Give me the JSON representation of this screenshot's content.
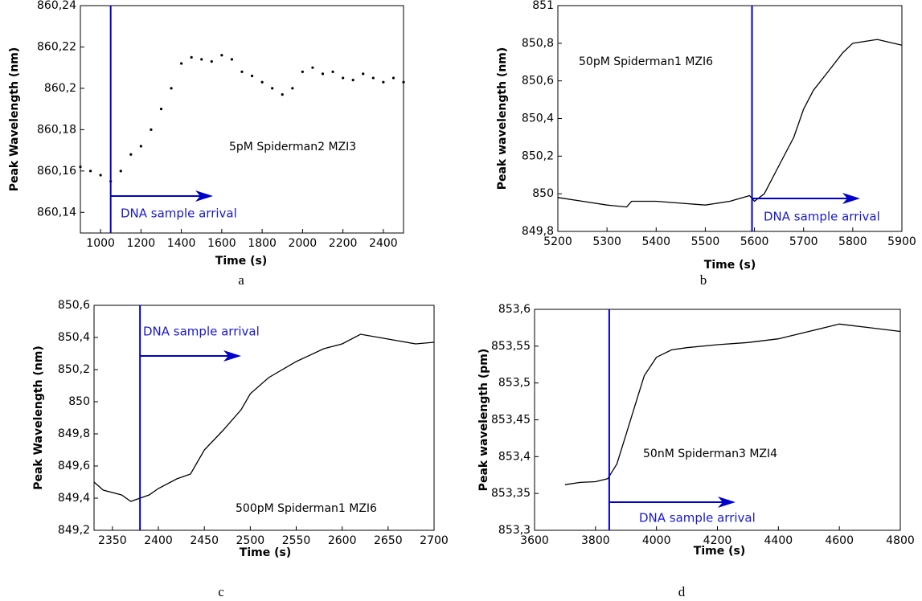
{
  "chart_data": [
    {
      "type": "scatter",
      "panel_label": "a",
      "x_label": "Time (s)",
      "y_label": "Peak Wavelength (nm)",
      "annotation": "5pM Spiderman2 MZI3",
      "arrow_label": "DNA sample arrival",
      "event_x": 1050,
      "event_color": "#0000cc",
      "color": "#000000",
      "x": [
        900,
        950,
        1000,
        1050,
        1100,
        1150,
        1200,
        1250,
        1300,
        1350,
        1400,
        1450,
        1500,
        1550,
        1600,
        1650,
        1700,
        1750,
        1800,
        1850,
        1900,
        1950,
        2000,
        2050,
        2100,
        2150,
        2200,
        2250,
        2300,
        2350,
        2400,
        2450,
        2500
      ],
      "values": [
        860.162,
        860.16,
        860.158,
        860.155,
        860.16,
        860.168,
        860.172,
        860.18,
        860.19,
        860.2,
        860.212,
        860.215,
        860.214,
        860.213,
        860.216,
        860.214,
        860.208,
        860.206,
        860.203,
        860.2,
        860.197,
        860.2,
        860.208,
        860.21,
        860.207,
        860.208,
        860.205,
        860.204,
        860.207,
        860.205,
        860.203,
        860.205,
        860.203
      ],
      "xlim": [
        900,
        2500
      ],
      "xticks": [
        1000,
        1200,
        1400,
        1600,
        1800,
        2000,
        2200,
        2400
      ],
      "ylim": [
        860.13,
        860.24
      ],
      "yticks": [
        {
          "value": 860.14,
          "label": "860,14"
        },
        {
          "value": 860.16,
          "label": "860,16"
        },
        {
          "value": 860.18,
          "label": "860,18"
        },
        {
          "value": 860.2,
          "label": "860,2"
        },
        {
          "value": 860.22,
          "label": "860,22"
        },
        {
          "value": 860.24,
          "label": "860,24"
        }
      ]
    },
    {
      "type": "line",
      "panel_label": "b",
      "x_label": "Time (s)",
      "y_label": "Peak wavelength (nm)",
      "annotation": "50pM Spiderman1 MZI6",
      "arrow_label": "DNA sample arrival",
      "event_x": 5595,
      "event_color": "#0000cc",
      "color": "#000000",
      "x": [
        5200,
        5250,
        5300,
        5340,
        5350,
        5400,
        5450,
        5500,
        5550,
        5590,
        5600,
        5620,
        5650,
        5680,
        5700,
        5720,
        5750,
        5780,
        5800,
        5850,
        5900
      ],
      "values": [
        849.98,
        849.96,
        849.94,
        849.93,
        849.96,
        849.96,
        849.95,
        849.94,
        849.96,
        849.99,
        849.96,
        850.0,
        850.15,
        850.3,
        850.45,
        850.55,
        850.65,
        850.75,
        850.8,
        850.82,
        850.79
      ],
      "xlim": [
        5200,
        5900
      ],
      "xticks": [
        5200,
        5300,
        5400,
        5500,
        5600,
        5700,
        5800,
        5900
      ],
      "ylim": [
        849.8,
        851
      ],
      "yticks": [
        {
          "value": 849.8,
          "label": "849,8"
        },
        850,
        {
          "value": 850.2,
          "label": "850,2"
        },
        {
          "value": 850.4,
          "label": "850,4"
        },
        {
          "value": 850.6,
          "label": "850,6"
        },
        {
          "value": 850.8,
          "label": "850,8"
        },
        851
      ]
    },
    {
      "type": "line",
      "panel_label": "c",
      "x_label": "Time (s)",
      "y_label": "Peak Wavelength (nm)",
      "annotation": "500pM Spiderman1 MZI6",
      "arrow_label": "DNA sample arrival",
      "event_x": 2380,
      "event_color": "#0000cc",
      "color": "#000000",
      "x": [
        2330,
        2340,
        2360,
        2370,
        2380,
        2390,
        2400,
        2420,
        2435,
        2450,
        2470,
        2490,
        2500,
        2520,
        2550,
        2580,
        2600,
        2620,
        2640,
        2660,
        2680,
        2700
      ],
      "values": [
        849.5,
        849.45,
        849.42,
        849.38,
        849.4,
        849.42,
        849.46,
        849.52,
        849.55,
        849.7,
        849.82,
        849.95,
        850.05,
        850.15,
        850.25,
        850.33,
        850.36,
        850.42,
        850.4,
        850.38,
        850.36,
        850.37
      ],
      "xlim": [
        2330,
        2700
      ],
      "xticks": [
        2350,
        2400,
        2450,
        2500,
        2550,
        2600,
        2650,
        2700
      ],
      "ylim": [
        849.2,
        850.6
      ],
      "yticks": [
        {
          "value": 849.2,
          "label": "849,2"
        },
        {
          "value": 849.4,
          "label": "849,4"
        },
        {
          "value": 849.6,
          "label": "849,6"
        },
        {
          "value": 849.8,
          "label": "849,8"
        },
        850,
        {
          "value": 850.2,
          "label": "850,2"
        },
        {
          "value": 850.4,
          "label": "850,4"
        },
        {
          "value": 850.6,
          "label": "850,6"
        }
      ]
    },
    {
      "type": "line",
      "panel_label": "d",
      "x_label": "Time (s)",
      "y_label": "Peak wavelength (pm)",
      "annotation": "50nM Spiderman3 MZI4",
      "arrow_label": "DNA sample arrival",
      "event_x": 3845,
      "event_color": "#0000cc",
      "color": "#000000",
      "x": [
        3700,
        3750,
        3800,
        3840,
        3870,
        3900,
        3930,
        3960,
        4000,
        4050,
        4100,
        4200,
        4300,
        4400,
        4500,
        4600,
        4700,
        4800
      ],
      "values": [
        853.362,
        853.365,
        853.366,
        853.37,
        853.39,
        853.43,
        853.47,
        853.51,
        853.535,
        853.545,
        853.548,
        853.552,
        853.555,
        853.56,
        853.57,
        853.58,
        853.575,
        853.57
      ],
      "xlim": [
        3600,
        4800
      ],
      "xticks": [
        3600,
        3800,
        4000,
        4200,
        4400,
        4600,
        4800
      ],
      "ylim": [
        853.3,
        853.6
      ],
      "yticks": [
        {
          "value": 853.3,
          "label": "853,3"
        },
        {
          "value": 853.35,
          "label": "853,35"
        },
        {
          "value": 853.4,
          "label": "853,4"
        },
        {
          "value": 853.45,
          "label": "853,45"
        },
        {
          "value": 853.5,
          "label": "853,5"
        },
        {
          "value": 853.55,
          "label": "853,55"
        },
        {
          "value": 853.6,
          "label": "853,6"
        }
      ]
    }
  ]
}
